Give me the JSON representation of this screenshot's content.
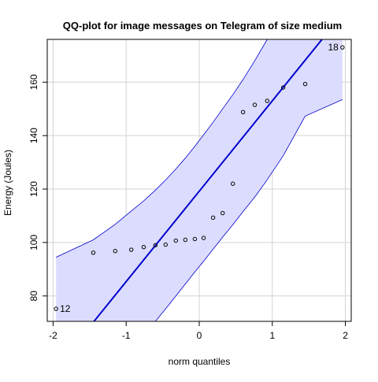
{
  "chart_data": {
    "type": "scatter",
    "title": "QQ-plot for image messages on Telegram of size medium",
    "xlabel": "norm quantiles",
    "ylabel": "Energy (Joules)",
    "xlim": [
      -2.08,
      2.08
    ],
    "ylim": [
      70.5,
      176
    ],
    "grid": true,
    "xticks": [
      -2,
      -1,
      0,
      1,
      2
    ],
    "yticks": [
      80,
      100,
      120,
      140,
      160
    ],
    "points": [
      {
        "x": -1.96,
        "y": 75.2,
        "label": "12"
      },
      {
        "x": -1.45,
        "y": 96.2
      },
      {
        "x": -1.15,
        "y": 96.8
      },
      {
        "x": -0.93,
        "y": 97.3
      },
      {
        "x": -0.76,
        "y": 98.3
      },
      {
        "x": -0.6,
        "y": 99.0
      },
      {
        "x": -0.46,
        "y": 99.2
      },
      {
        "x": -0.32,
        "y": 100.7
      },
      {
        "x": -0.19,
        "y": 101.0
      },
      {
        "x": -0.06,
        "y": 101.3
      },
      {
        "x": 0.06,
        "y": 101.7
      },
      {
        "x": 0.19,
        "y": 109.3
      },
      {
        "x": 0.32,
        "y": 111.0
      },
      {
        "x": 0.46,
        "y": 122.0
      },
      {
        "x": 0.6,
        "y": 148.8
      },
      {
        "x": 0.76,
        "y": 151.5
      },
      {
        "x": 0.93,
        "y": 153.0
      },
      {
        "x": 1.15,
        "y": 158.0
      },
      {
        "x": 1.45,
        "y": 159.3
      },
      {
        "x": 1.96,
        "y": 173.0,
        "label": "18"
      }
    ],
    "reference_line": {
      "x": [
        -1.44,
        1.68
      ],
      "y": [
        70.5,
        176
      ]
    },
    "confidence_band": {
      "x": [
        -1.96,
        -1.45,
        -1.15,
        -0.93,
        -0.76,
        -0.6,
        -0.46,
        -0.32,
        -0.19,
        -0.06,
        0.06,
        0.19,
        0.32,
        0.46,
        0.6,
        0.76,
        0.93,
        1.15,
        1.45,
        1.96
      ],
      "upper": [
        94.5,
        101.0,
        106.8,
        111.8,
        115.6,
        119.6,
        123.4,
        127.5,
        131.6,
        136.0,
        140.3,
        145.0,
        150.0,
        155.3,
        161.0,
        168.0,
        176.0,
        176.0,
        176.0,
        176.0
      ],
      "lower": [
        70.5,
        70.5,
        70.5,
        70.5,
        70.5,
        70.5,
        75.2,
        80.0,
        84.5,
        89.0,
        93.0,
        97.5,
        102.0,
        106.7,
        111.6,
        117.0,
        123.5,
        132.5,
        147.3,
        153.5
      ]
    },
    "colors": {
      "band_fill": "#dcdcff",
      "band_stroke": "#0000cd",
      "reference_line": "#0000cd",
      "points": "#000000",
      "grid": "#d3d3d3"
    }
  }
}
